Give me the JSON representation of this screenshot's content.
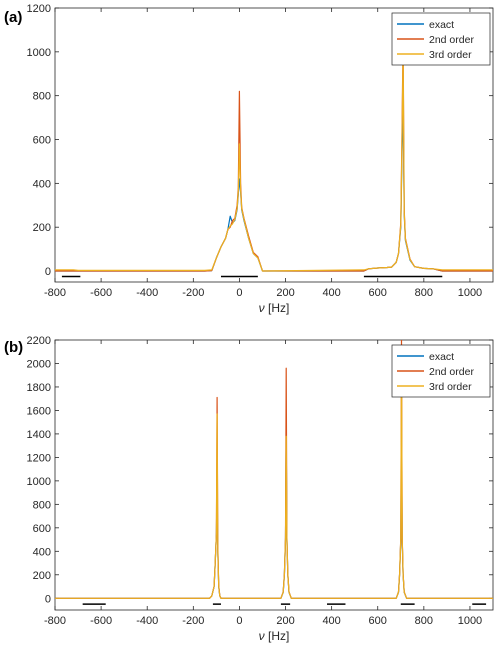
{
  "chart_data": [
    {
      "panel_label": "(a)",
      "type": "line",
      "xlabel": "ν [Hz]",
      "ylabel": "",
      "xlim": [
        -800,
        1100
      ],
      "ylim": [
        -50,
        1200
      ],
      "xticks": [
        -800,
        -600,
        -400,
        -200,
        0,
        200,
        400,
        600,
        800,
        1000
      ],
      "xtick_labels": [
        "-800",
        "-600",
        "-400",
        "-200",
        "0",
        "200",
        "400",
        "600",
        "800",
        "1000"
      ],
      "yticks": [
        0,
        200,
        400,
        600,
        800,
        1000,
        1200
      ],
      "ytick_labels": [
        "0",
        "200",
        "400",
        "600",
        "800",
        "1000",
        "1200"
      ],
      "legend_position": "top-right",
      "series": [
        {
          "name": "exact",
          "color": "#0072BD",
          "x": [
            -800,
            -720,
            -700,
            -150,
            -120,
            -100,
            -80,
            -60,
            -50,
            -40,
            -30,
            -20,
            -10,
            -5,
            0,
            5,
            10,
            20,
            40,
            60,
            80,
            100,
            540,
            560,
            600,
            640,
            660,
            680,
            690,
            700,
            705,
            710,
            715,
            720,
            740,
            760,
            800,
            840,
            880,
            1100
          ],
          "y": [
            0,
            0,
            0,
            0,
            2,
            60,
            110,
            150,
            190,
            250,
            220,
            230,
            280,
            350,
            420,
            360,
            280,
            230,
            150,
            80,
            60,
            0,
            0,
            10,
            14,
            16,
            18,
            40,
            80,
            200,
            500,
            780,
            260,
            140,
            50,
            20,
            12,
            10,
            0,
            0
          ]
        },
        {
          "name": "2nd order",
          "color": "#D95319",
          "x": [
            -800,
            -720,
            -700,
            -150,
            -120,
            -100,
            -80,
            -60,
            -50,
            -40,
            -30,
            -20,
            -10,
            -5,
            0,
            5,
            10,
            20,
            40,
            60,
            80,
            100,
            540,
            560,
            600,
            640,
            660,
            680,
            690,
            700,
            705,
            710,
            715,
            720,
            740,
            760,
            800,
            840,
            880,
            1100
          ],
          "y": [
            0,
            0,
            0,
            0,
            2,
            60,
            110,
            150,
            190,
            200,
            230,
            240,
            300,
            380,
            820,
            400,
            290,
            240,
            160,
            85,
            65,
            0,
            0,
            10,
            14,
            16,
            18,
            40,
            80,
            220,
            600,
            1060,
            280,
            150,
            55,
            20,
            12,
            10,
            0,
            0
          ]
        },
        {
          "name": "3rd order",
          "color": "#EDB120",
          "x": [
            -800,
            -720,
            -700,
            -150,
            -120,
            -100,
            -80,
            -60,
            -50,
            -40,
            -30,
            -20,
            -10,
            -5,
            0,
            5,
            10,
            20,
            40,
            60,
            80,
            100,
            540,
            560,
            600,
            640,
            660,
            680,
            690,
            700,
            705,
            710,
            715,
            720,
            740,
            760,
            800,
            840,
            880,
            1100
          ],
          "y": [
            5,
            5,
            3,
            3,
            5,
            60,
            110,
            150,
            190,
            205,
            215,
            235,
            285,
            360,
            580,
            370,
            285,
            235,
            150,
            80,
            60,
            0,
            5,
            10,
            14,
            16,
            18,
            40,
            80,
            210,
            560,
            1000,
            270,
            145,
            52,
            20,
            12,
            10,
            5,
            5
          ]
        }
      ],
      "range_bars": [
        [
          -770,
          -690
        ],
        [
          -80,
          80
        ],
        [
          540,
          880
        ]
      ]
    },
    {
      "panel_label": "(b)",
      "type": "line",
      "xlabel": "ν [Hz]",
      "ylabel": "",
      "xlim": [
        -800,
        1100
      ],
      "ylim": [
        -100,
        2200
      ],
      "xticks": [
        -800,
        -600,
        -400,
        -200,
        0,
        200,
        400,
        600,
        800,
        1000
      ],
      "xtick_labels": [
        "-800",
        "-600",
        "-400",
        "-200",
        "0",
        "200",
        "400",
        "600",
        "800",
        "1000"
      ],
      "yticks": [
        0,
        200,
        400,
        600,
        800,
        1000,
        1200,
        1400,
        1600,
        1800,
        2000,
        2200
      ],
      "ytick_labels": [
        "0",
        "200",
        "400",
        "600",
        "800",
        "1000",
        "1200",
        "1400",
        "1600",
        "1800",
        "2000",
        "2200"
      ],
      "legend_position": "top-right",
      "series": [
        {
          "name": "exact",
          "color": "#0072BD",
          "x": [
            -800,
            -130,
            -120,
            -110,
            -105,
            -100,
            -97,
            -94,
            -90,
            -85,
            -80,
            180,
            190,
            195,
            200,
            203,
            206,
            210,
            215,
            225,
            680,
            690,
            695,
            700,
            703,
            706,
            710,
            715,
            725,
            1100
          ],
          "y": [
            0,
            0,
            20,
            100,
            300,
            550,
            1000,
            400,
            100,
            20,
            0,
            0,
            50,
            200,
            500,
            1400,
            500,
            200,
            50,
            0,
            0,
            50,
            200,
            500,
            1400,
            500,
            200,
            50,
            0,
            0
          ]
        },
        {
          "name": "2nd order",
          "color": "#D95319",
          "x": [
            -800,
            -130,
            -120,
            -110,
            -105,
            -100,
            -97,
            -94,
            -90,
            -85,
            -80,
            180,
            190,
            195,
            200,
            203,
            206,
            210,
            215,
            225,
            680,
            690,
            695,
            700,
            703,
            706,
            710,
            715,
            725,
            1100
          ],
          "y": [
            0,
            0,
            20,
            100,
            300,
            550,
            1710,
            450,
            110,
            20,
            0,
            0,
            55,
            210,
            520,
            1960,
            520,
            210,
            55,
            0,
            0,
            55,
            210,
            520,
            2200,
            520,
            210,
            55,
            0,
            0
          ]
        },
        {
          "name": "3rd order",
          "color": "#EDB120",
          "x": [
            -800,
            -130,
            -120,
            -110,
            -105,
            -100,
            -97,
            -94,
            -90,
            -85,
            -80,
            180,
            190,
            195,
            200,
            203,
            206,
            210,
            215,
            225,
            680,
            690,
            695,
            700,
            703,
            706,
            710,
            715,
            725,
            1100
          ],
          "y": [
            0,
            0,
            20,
            100,
            300,
            550,
            1570,
            420,
            105,
            20,
            0,
            0,
            52,
            205,
            510,
            1380,
            510,
            205,
            52,
            0,
            0,
            52,
            205,
            510,
            2150,
            510,
            205,
            52,
            0,
            0
          ]
        }
      ],
      "range_bars": [
        [
          -680,
          -580
        ],
        [
          -115,
          -80
        ],
        [
          180,
          220
        ],
        [
          380,
          460
        ],
        [
          700,
          760
        ],
        [
          1010,
          1070
        ]
      ]
    }
  ]
}
